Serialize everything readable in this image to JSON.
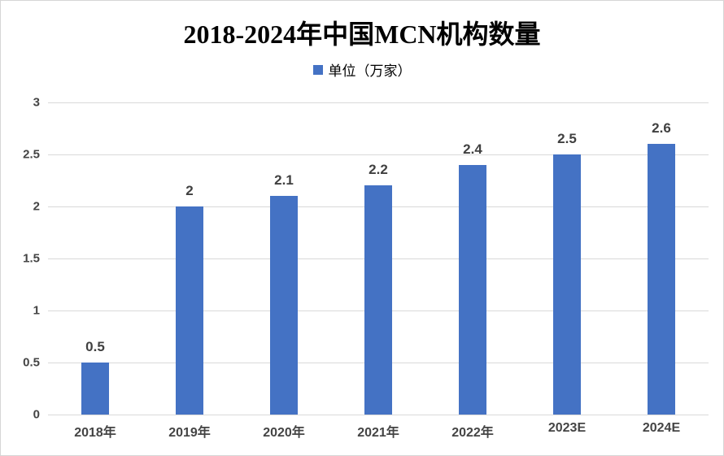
{
  "chart_data": {
    "type": "bar",
    "title": "2018-2024年中国MCN机构数量",
    "legend": {
      "label": "单位（万家）",
      "position": "top"
    },
    "categories": [
      "2018年",
      "2019年",
      "2020年",
      "2021年",
      "2022年",
      "2023E",
      "2024E"
    ],
    "values": [
      0.5,
      2,
      2.1,
      2.2,
      2.4,
      2.5,
      2.6
    ],
    "data_labels": [
      "0.5",
      "2",
      "2.1",
      "2.2",
      "2.4",
      "2.5",
      "2.6"
    ],
    "y_ticks": [
      "3",
      "2.5",
      "2",
      "1.5",
      "1",
      "0.5",
      "0"
    ],
    "y_tick_values": [
      3,
      2.5,
      2,
      1.5,
      1,
      0.5,
      0
    ],
    "ylim": [
      0,
      3
    ],
    "grid": true,
    "colors": {
      "bar": "#4472C4",
      "gridline": "#d9d9d9",
      "axis_text": "#444444",
      "data_label_text": "#404040",
      "title_text": "#000000"
    }
  }
}
